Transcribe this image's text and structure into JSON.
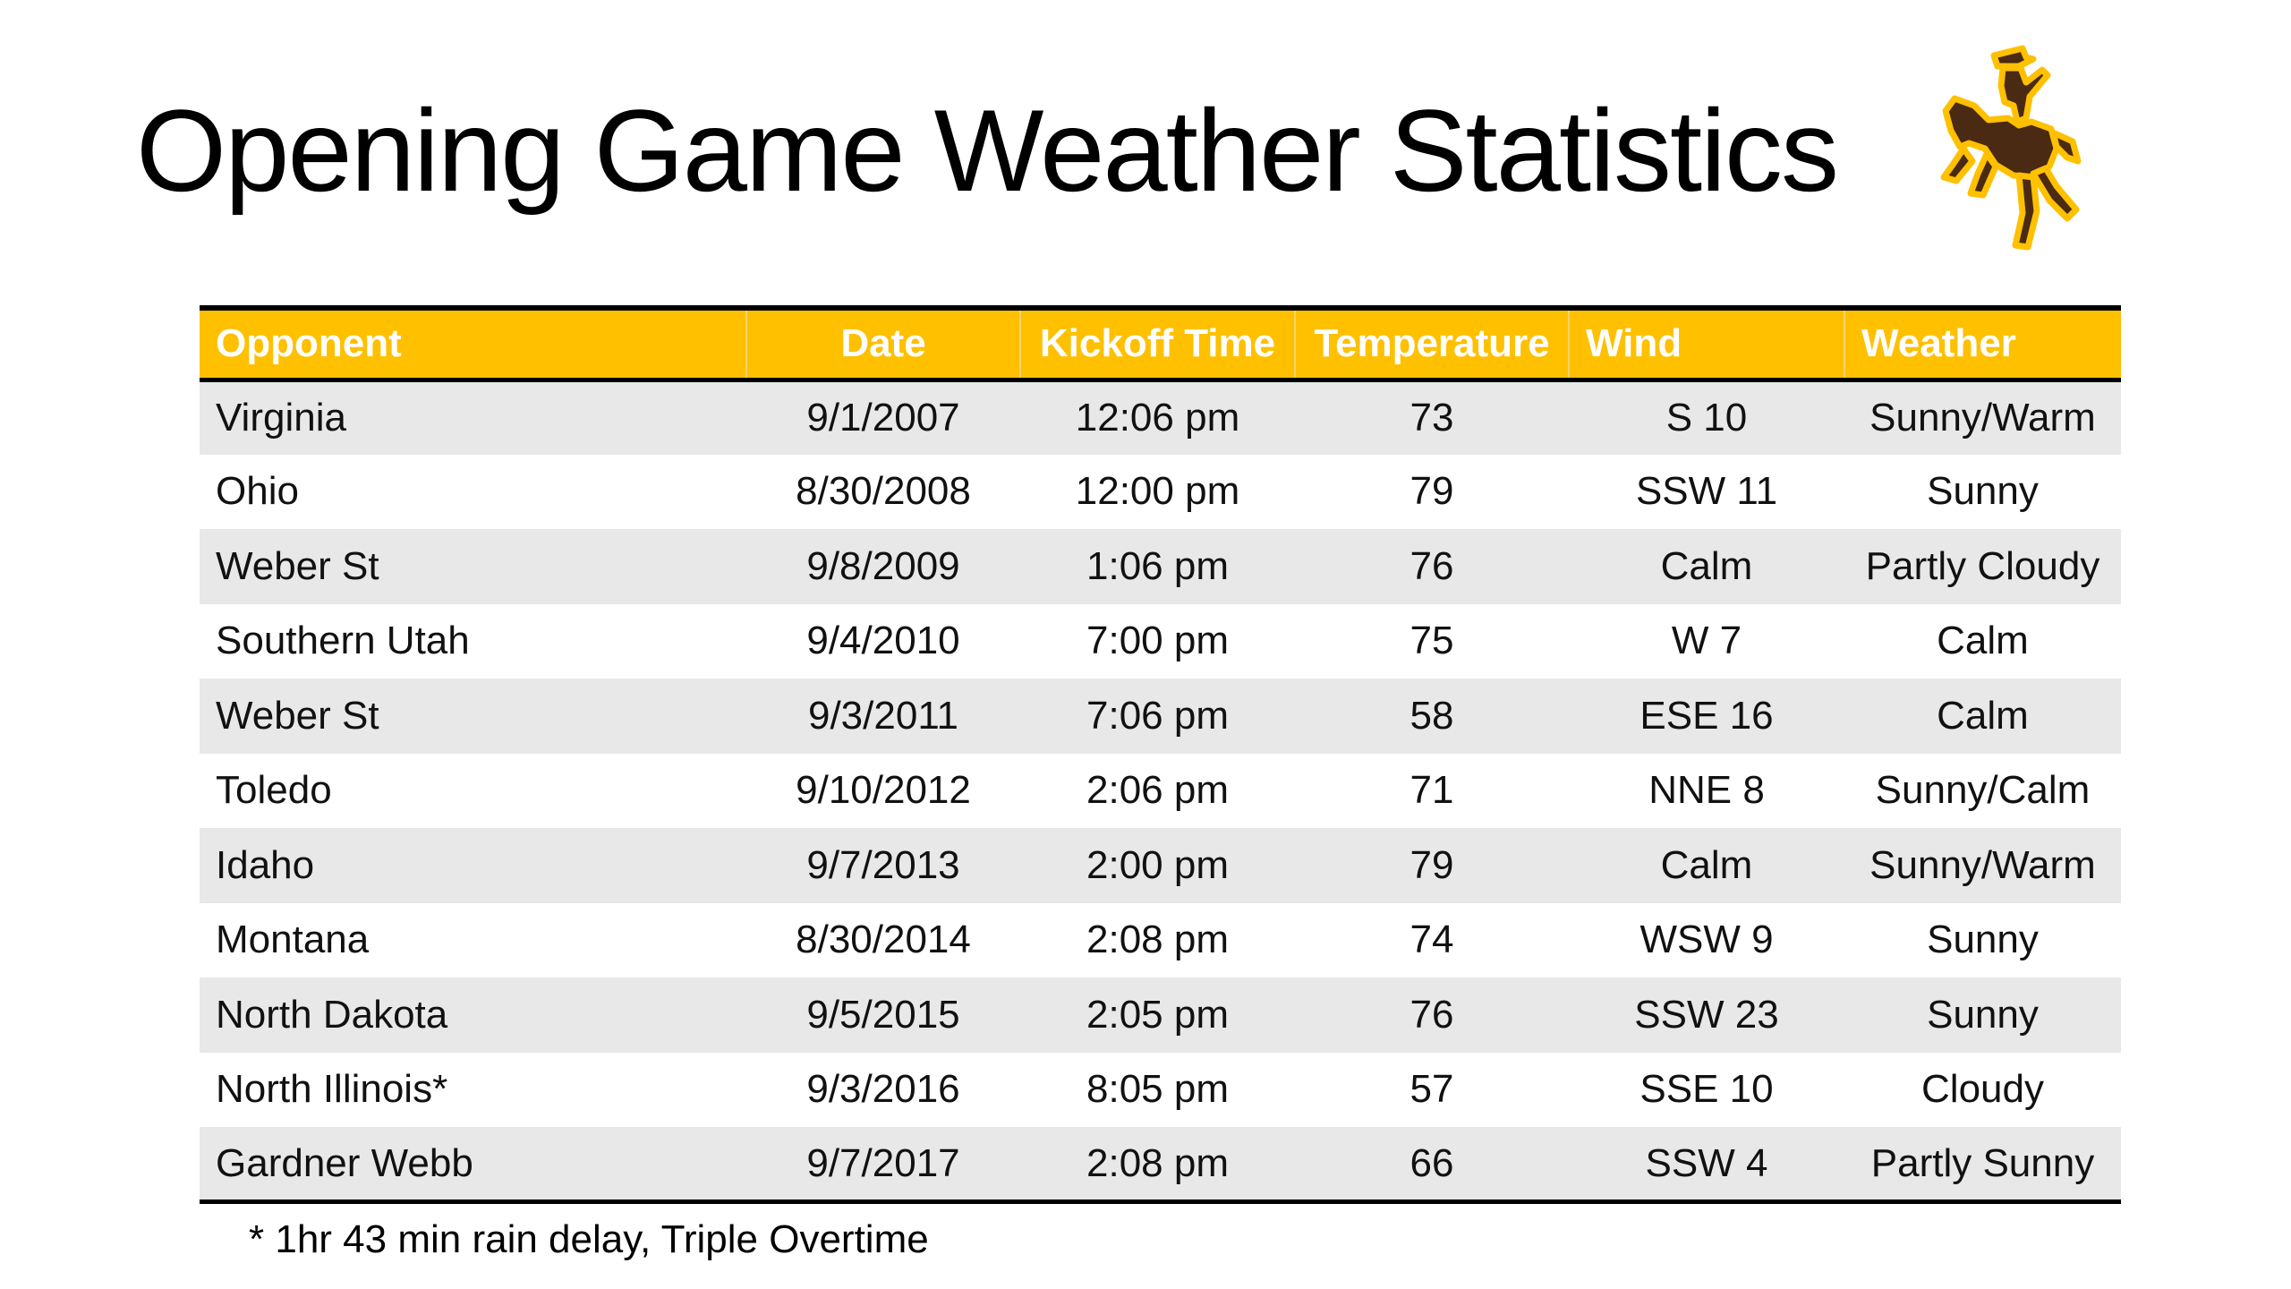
{
  "title": "Opening Game Weather Statistics",
  "logo": {
    "icon": "bucking-horse-rider-logo",
    "colors": {
      "body": "#4a2a12",
      "outline": "#ffc000"
    }
  },
  "table": {
    "header_color": "#ffc000",
    "columns": [
      "Opponent",
      "Date",
      "Kickoff Time",
      "Temperature",
      "Wind",
      "Weather"
    ],
    "rows": [
      [
        "Virginia",
        "9/1/2007",
        "12:06 pm",
        "73",
        "S 10",
        "Sunny/Warm"
      ],
      [
        "Ohio",
        "8/30/2008",
        "12:00 pm",
        "79",
        "SSW 11",
        "Sunny"
      ],
      [
        "Weber St",
        "9/8/2009",
        "1:06 pm",
        "76",
        "Calm",
        "Partly Cloudy"
      ],
      [
        "Southern Utah",
        "9/4/2010",
        "7:00 pm",
        "75",
        "W 7",
        "Calm"
      ],
      [
        "Weber St",
        "9/3/2011",
        "7:06 pm",
        "58",
        "ESE 16",
        "Calm"
      ],
      [
        "Toledo",
        "9/10/2012",
        "2:06 pm",
        "71",
        "NNE 8",
        "Sunny/Calm"
      ],
      [
        "Idaho",
        "9/7/2013",
        "2:00 pm",
        "79",
        "Calm",
        "Sunny/Warm"
      ],
      [
        "Montana",
        "8/30/2014",
        "2:08 pm",
        "74",
        "WSW 9",
        "Sunny"
      ],
      [
        "North Dakota",
        "9/5/2015",
        "2:05 pm",
        "76",
        "SSW 23",
        "Sunny"
      ],
      [
        "North Illinois*",
        "9/3/2016",
        "8:05 pm",
        "57",
        "SSE 10",
        "Cloudy"
      ],
      [
        "Gardner Webb",
        "9/7/2017",
        "2:08 pm",
        "66",
        "SSW 4",
        "Partly Sunny"
      ]
    ]
  },
  "footnote": "* 1hr 43 min rain delay, Triple Overtime"
}
